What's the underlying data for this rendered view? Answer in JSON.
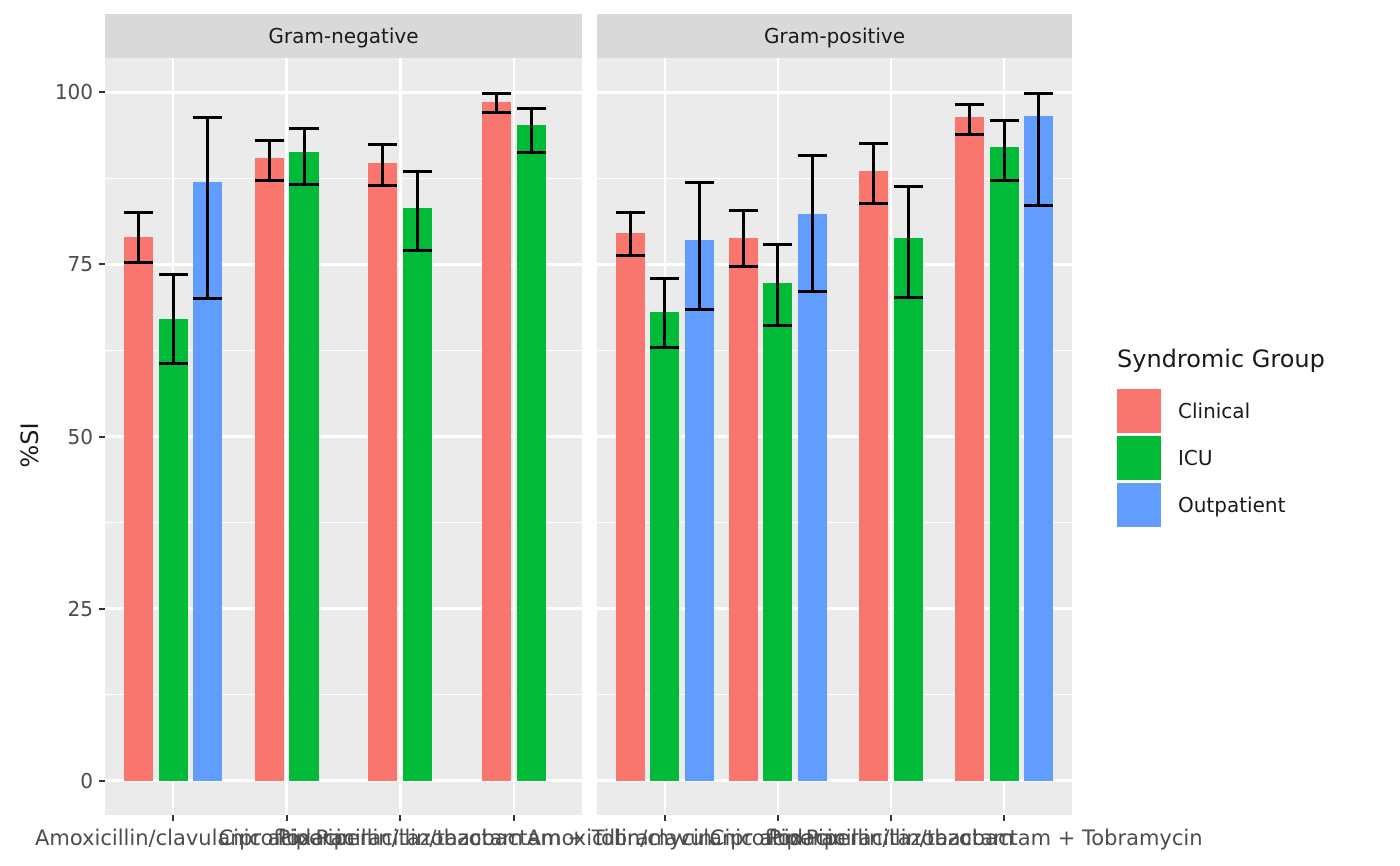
{
  "chart_data": {
    "type": "bar",
    "title": "",
    "xlabel": "",
    "ylabel": "%SI",
    "y_ticks": [
      0,
      25,
      50,
      75,
      100
    ],
    "y_minor_ticks": [
      12.5,
      37.5,
      62.5,
      87.5
    ],
    "ylim": [
      0,
      100
    ],
    "ylim_expanded": [
      -5,
      105
    ],
    "grid": "on",
    "error_bars": true,
    "facets": [
      "Gram-negative",
      "Gram-positive"
    ],
    "categories": [
      "Amoxicillin/clavulanic acid",
      "Ciprofloxacin",
      "Piperacillin/tazobactam",
      "Piperacillin/tazobactam + Tobramycin"
    ],
    "series": [
      {
        "name": "Clinical",
        "color": "#F8766D"
      },
      {
        "name": "ICU",
        "color": "#00BA38"
      },
      {
        "name": "Outpatient",
        "color": "#619CFF"
      }
    ],
    "legend": {
      "title": "Syndromic Group",
      "position": "right"
    },
    "values": [
      [
        [
          {
            "v": 79.0,
            "lo": 75.3,
            "hi": 82.6
          },
          {
            "v": 67.1,
            "lo": 60.6,
            "hi": 73.6
          },
          {
            "v": 87.0,
            "lo": 70.1,
            "hi": 96.4
          }
        ],
        [
          {
            "v": 90.4,
            "lo": 87.2,
            "hi": 93.0
          },
          {
            "v": 91.3,
            "lo": 86.6,
            "hi": 94.7
          },
          null
        ],
        [
          {
            "v": 89.8,
            "lo": 86.5,
            "hi": 92.5
          },
          {
            "v": 83.2,
            "lo": 77.0,
            "hi": 88.5
          },
          null
        ],
        [
          {
            "v": 98.6,
            "lo": 97.1,
            "hi": 99.8
          },
          {
            "v": 95.2,
            "lo": 91.3,
            "hi": 97.7
          },
          null
        ]
      ],
      [
        [
          {
            "v": 79.6,
            "lo": 76.3,
            "hi": 82.5
          },
          {
            "v": 68.1,
            "lo": 62.9,
            "hi": 73.0
          },
          {
            "v": 78.5,
            "lo": 68.4,
            "hi": 86.9
          }
        ],
        [
          {
            "v": 78.9,
            "lo": 74.7,
            "hi": 82.8
          },
          {
            "v": 72.3,
            "lo": 66.1,
            "hi": 77.9
          },
          {
            "v": 82.4,
            "lo": 71.1,
            "hi": 90.9
          }
        ],
        [
          {
            "v": 88.6,
            "lo": 83.8,
            "hi": 92.6
          },
          {
            "v": 78.9,
            "lo": 70.2,
            "hi": 86.3
          },
          null
        ],
        [
          {
            "v": 96.4,
            "lo": 93.9,
            "hi": 98.2
          },
          {
            "v": 92.0,
            "lo": 87.2,
            "hi": 95.9
          },
          {
            "v": 96.6,
            "lo": 83.5,
            "hi": 99.9
          }
        ]
      ]
    ],
    "style": {
      "panel_background": "#EBEBEB",
      "strip_background": "#D9D9D9",
      "grid_color": "#FFFFFF",
      "axis_text_color": "#4D4D4D",
      "text_color": "#1A1A1A",
      "error_bar_color": "#000000"
    }
  }
}
